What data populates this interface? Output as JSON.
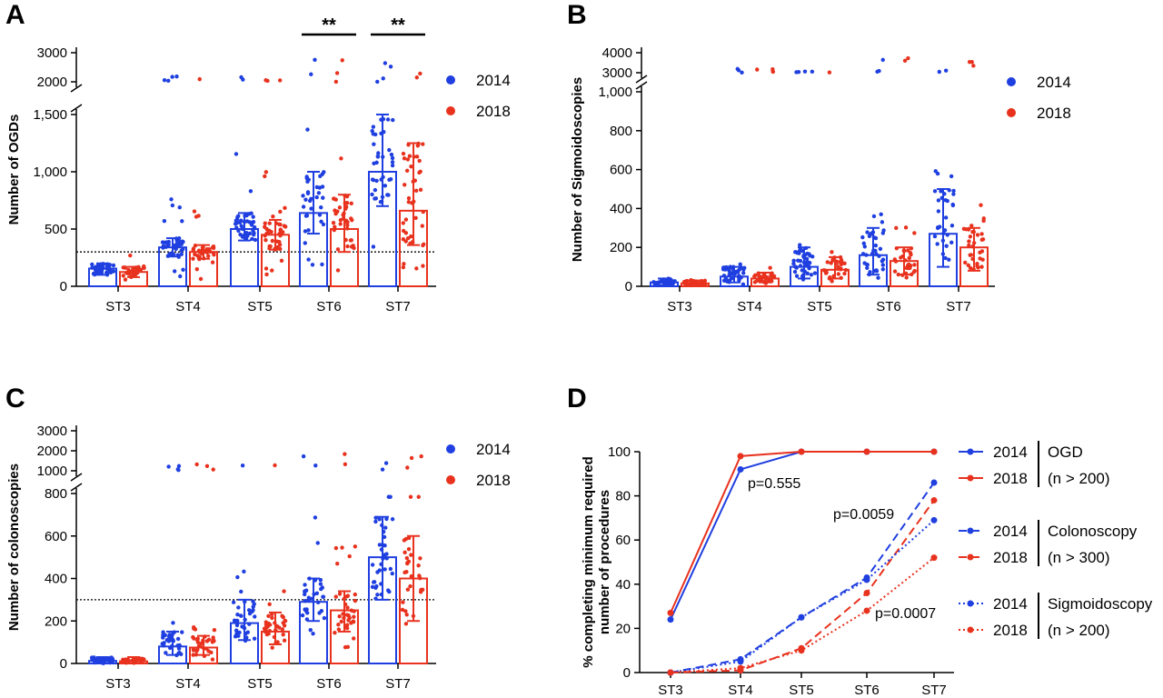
{
  "colors": {
    "y2014": "#1f3fe0",
    "y2018": "#e8321e"
  },
  "panels": {
    "A": "A",
    "B": "B",
    "C": "C",
    "D": "D"
  },
  "legend_years": [
    "2014",
    "2018"
  ],
  "significance": [
    "**",
    "**"
  ],
  "chart_data": [
    {
      "panel": "A",
      "type": "bar",
      "ylabel": "Number of OGDs",
      "categories": [
        "ST3",
        "ST4",
        "ST5",
        "ST6",
        "ST7"
      ],
      "y_ticks_lower": [
        "0",
        "500",
        "1,000",
        "1,500"
      ],
      "y_ticks_upper": [
        "2000",
        "3000"
      ],
      "ylim_lower": [
        0,
        1500
      ],
      "ylim_upper": [
        2000,
        3000
      ],
      "threshold": 300,
      "series": [
        {
          "name": "2014",
          "means": [
            155,
            340,
            500,
            640,
            1000
          ],
          "sd": [
            [
              100,
              200
            ],
            [
              260,
              420
            ],
            [
              400,
              640
            ],
            [
              460,
              1000
            ],
            [
              700,
              1500
            ]
          ]
        },
        {
          "name": "2018",
          "means": [
            125,
            300,
            450,
            500,
            660
          ],
          "sd": [
            [
              80,
              170
            ],
            [
              240,
              360
            ],
            [
              320,
              580
            ],
            [
              300,
              800
            ],
            [
              360,
              1250
            ]
          ]
        }
      ],
      "significance": [
        {
          "category": "ST6",
          "label": "**"
        },
        {
          "category": "ST7",
          "label": "**"
        }
      ]
    },
    {
      "panel": "B",
      "type": "bar",
      "ylabel": "Number of Sigmoidoscopies",
      "categories": [
        "ST3",
        "ST4",
        "ST5",
        "ST6",
        "ST7"
      ],
      "y_ticks_lower": [
        "0",
        "200",
        "400",
        "600",
        "800",
        "1,000"
      ],
      "y_ticks_upper": [
        "3000",
        "4000"
      ],
      "ylim_lower": [
        0,
        1000
      ],
      "ylim_upper": [
        3000,
        4000
      ],
      "series": [
        {
          "name": "2014",
          "means": [
            20,
            50,
            100,
            160,
            270
          ],
          "sd": [
            [
              5,
              40
            ],
            [
              20,
              100
            ],
            [
              40,
              200
            ],
            [
              60,
              300
            ],
            [
              100,
              500
            ]
          ]
        },
        {
          "name": "2018",
          "means": [
            15,
            40,
            85,
            130,
            200
          ],
          "sd": [
            [
              5,
              30
            ],
            [
              20,
              70
            ],
            [
              40,
              150
            ],
            [
              60,
              200
            ],
            [
              80,
              300
            ]
          ]
        }
      ]
    },
    {
      "panel": "C",
      "type": "bar",
      "ylabel": "Number of colonoscopies",
      "categories": [
        "ST3",
        "ST4",
        "ST5",
        "ST6",
        "ST7"
      ],
      "y_ticks_lower": [
        "0",
        "200",
        "400",
        "600",
        "800"
      ],
      "y_ticks_upper": [
        "1000",
        "2000",
        "3000"
      ],
      "ylim_lower": [
        0,
        800
      ],
      "ylim_upper": [
        1000,
        3000
      ],
      "threshold": 300,
      "series": [
        {
          "name": "2014",
          "means": [
            12,
            80,
            190,
            290,
            500
          ],
          "sd": [
            [
              0,
              30
            ],
            [
              40,
              150
            ],
            [
              110,
              300
            ],
            [
              200,
              400
            ],
            [
              300,
              690
            ]
          ]
        },
        {
          "name": "2018",
          "means": [
            10,
            75,
            150,
            250,
            400
          ],
          "sd": [
            [
              0,
              30
            ],
            [
              40,
              130
            ],
            [
              90,
              240
            ],
            [
              150,
              340
            ],
            [
              200,
              600
            ]
          ]
        }
      ]
    },
    {
      "panel": "D",
      "type": "line",
      "ylabel_line1": "% completing minimum required",
      "ylabel_line2": "number of procedures",
      "categories": [
        "ST3",
        "ST4",
        "ST5",
        "ST6",
        "ST7"
      ],
      "y_ticks": [
        "0",
        "20",
        "40",
        "60",
        "80",
        "100"
      ],
      "ylim": [
        0,
        100
      ],
      "series": [
        {
          "name": "2014",
          "group": "OGD",
          "style": "solid",
          "values": [
            24,
            92,
            100,
            100,
            100
          ]
        },
        {
          "name": "2018",
          "group": "OGD",
          "style": "solid",
          "values": [
            27,
            98,
            100,
            100,
            100
          ]
        },
        {
          "name": "2014",
          "group": "Colonoscopy",
          "style": "dashed",
          "values": [
            0,
            6,
            25,
            43,
            86
          ]
        },
        {
          "name": "2018",
          "group": "Colonoscopy",
          "style": "dashed",
          "values": [
            0,
            1,
            11,
            36,
            78
          ]
        },
        {
          "name": "2014",
          "group": "Sigmoidoscopy",
          "style": "dotted",
          "values": [
            0,
            5,
            25,
            42,
            69
          ]
        },
        {
          "name": "2018",
          "group": "Sigmoidoscopy",
          "style": "dotted",
          "values": [
            0,
            2,
            10,
            28,
            52
          ]
        }
      ],
      "annotations": [
        "p=0.555",
        "p=0.0059",
        "p=0.0007"
      ],
      "legend_groups": [
        {
          "label_line1": "OGD",
          "label_line2": "(n > 200)"
        },
        {
          "label_line1": "Colonoscopy",
          "label_line2": " (n > 300)"
        },
        {
          "label_line1": "Sigmoidoscopy",
          "label_line2": "(n > 200)"
        }
      ]
    }
  ]
}
